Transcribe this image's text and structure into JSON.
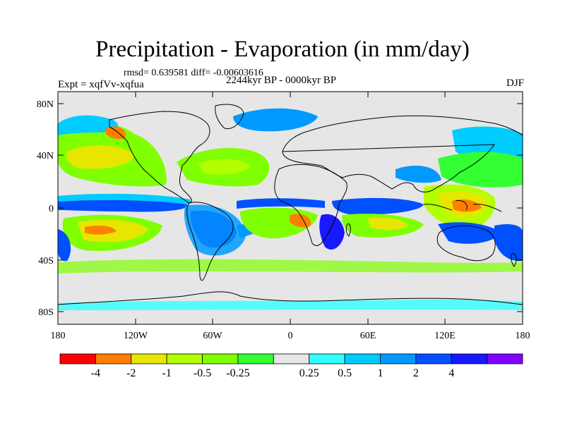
{
  "title": "Precipitation - Evaporation (in mm/day)",
  "stats": "rmsd= 0.639581  diff= -0.00603616",
  "experiment": "Expt = xqfVv-xqfua",
  "period": "2244kyr BP - 0000kyr BP",
  "season": "DJF",
  "map": {
    "projection": "cylindrical-equidistant",
    "background_color": "#e6e6e6",
    "coastlines": "black",
    "lat_ticks": [
      "80N",
      "40N",
      "0",
      "40S",
      "80S"
    ],
    "lon_ticks": [
      "180",
      "120W",
      "60W",
      "0",
      "60E",
      "120E",
      "180"
    ]
  },
  "colorbar": {
    "colors": [
      "#ff0000",
      "#ff8000",
      "#e6e600",
      "#b3ff00",
      "#80ff00",
      "#33ff33",
      "#e6e6e6",
      "#33ffff",
      "#00ccff",
      "#0099ff",
      "#0050ff",
      "#1919ff",
      "#8000ff"
    ],
    "labels": [
      "-4",
      "-2",
      "-1",
      "-0.5",
      "-0.25",
      "0.25",
      "0.5",
      "1",
      "2",
      "4"
    ]
  }
}
